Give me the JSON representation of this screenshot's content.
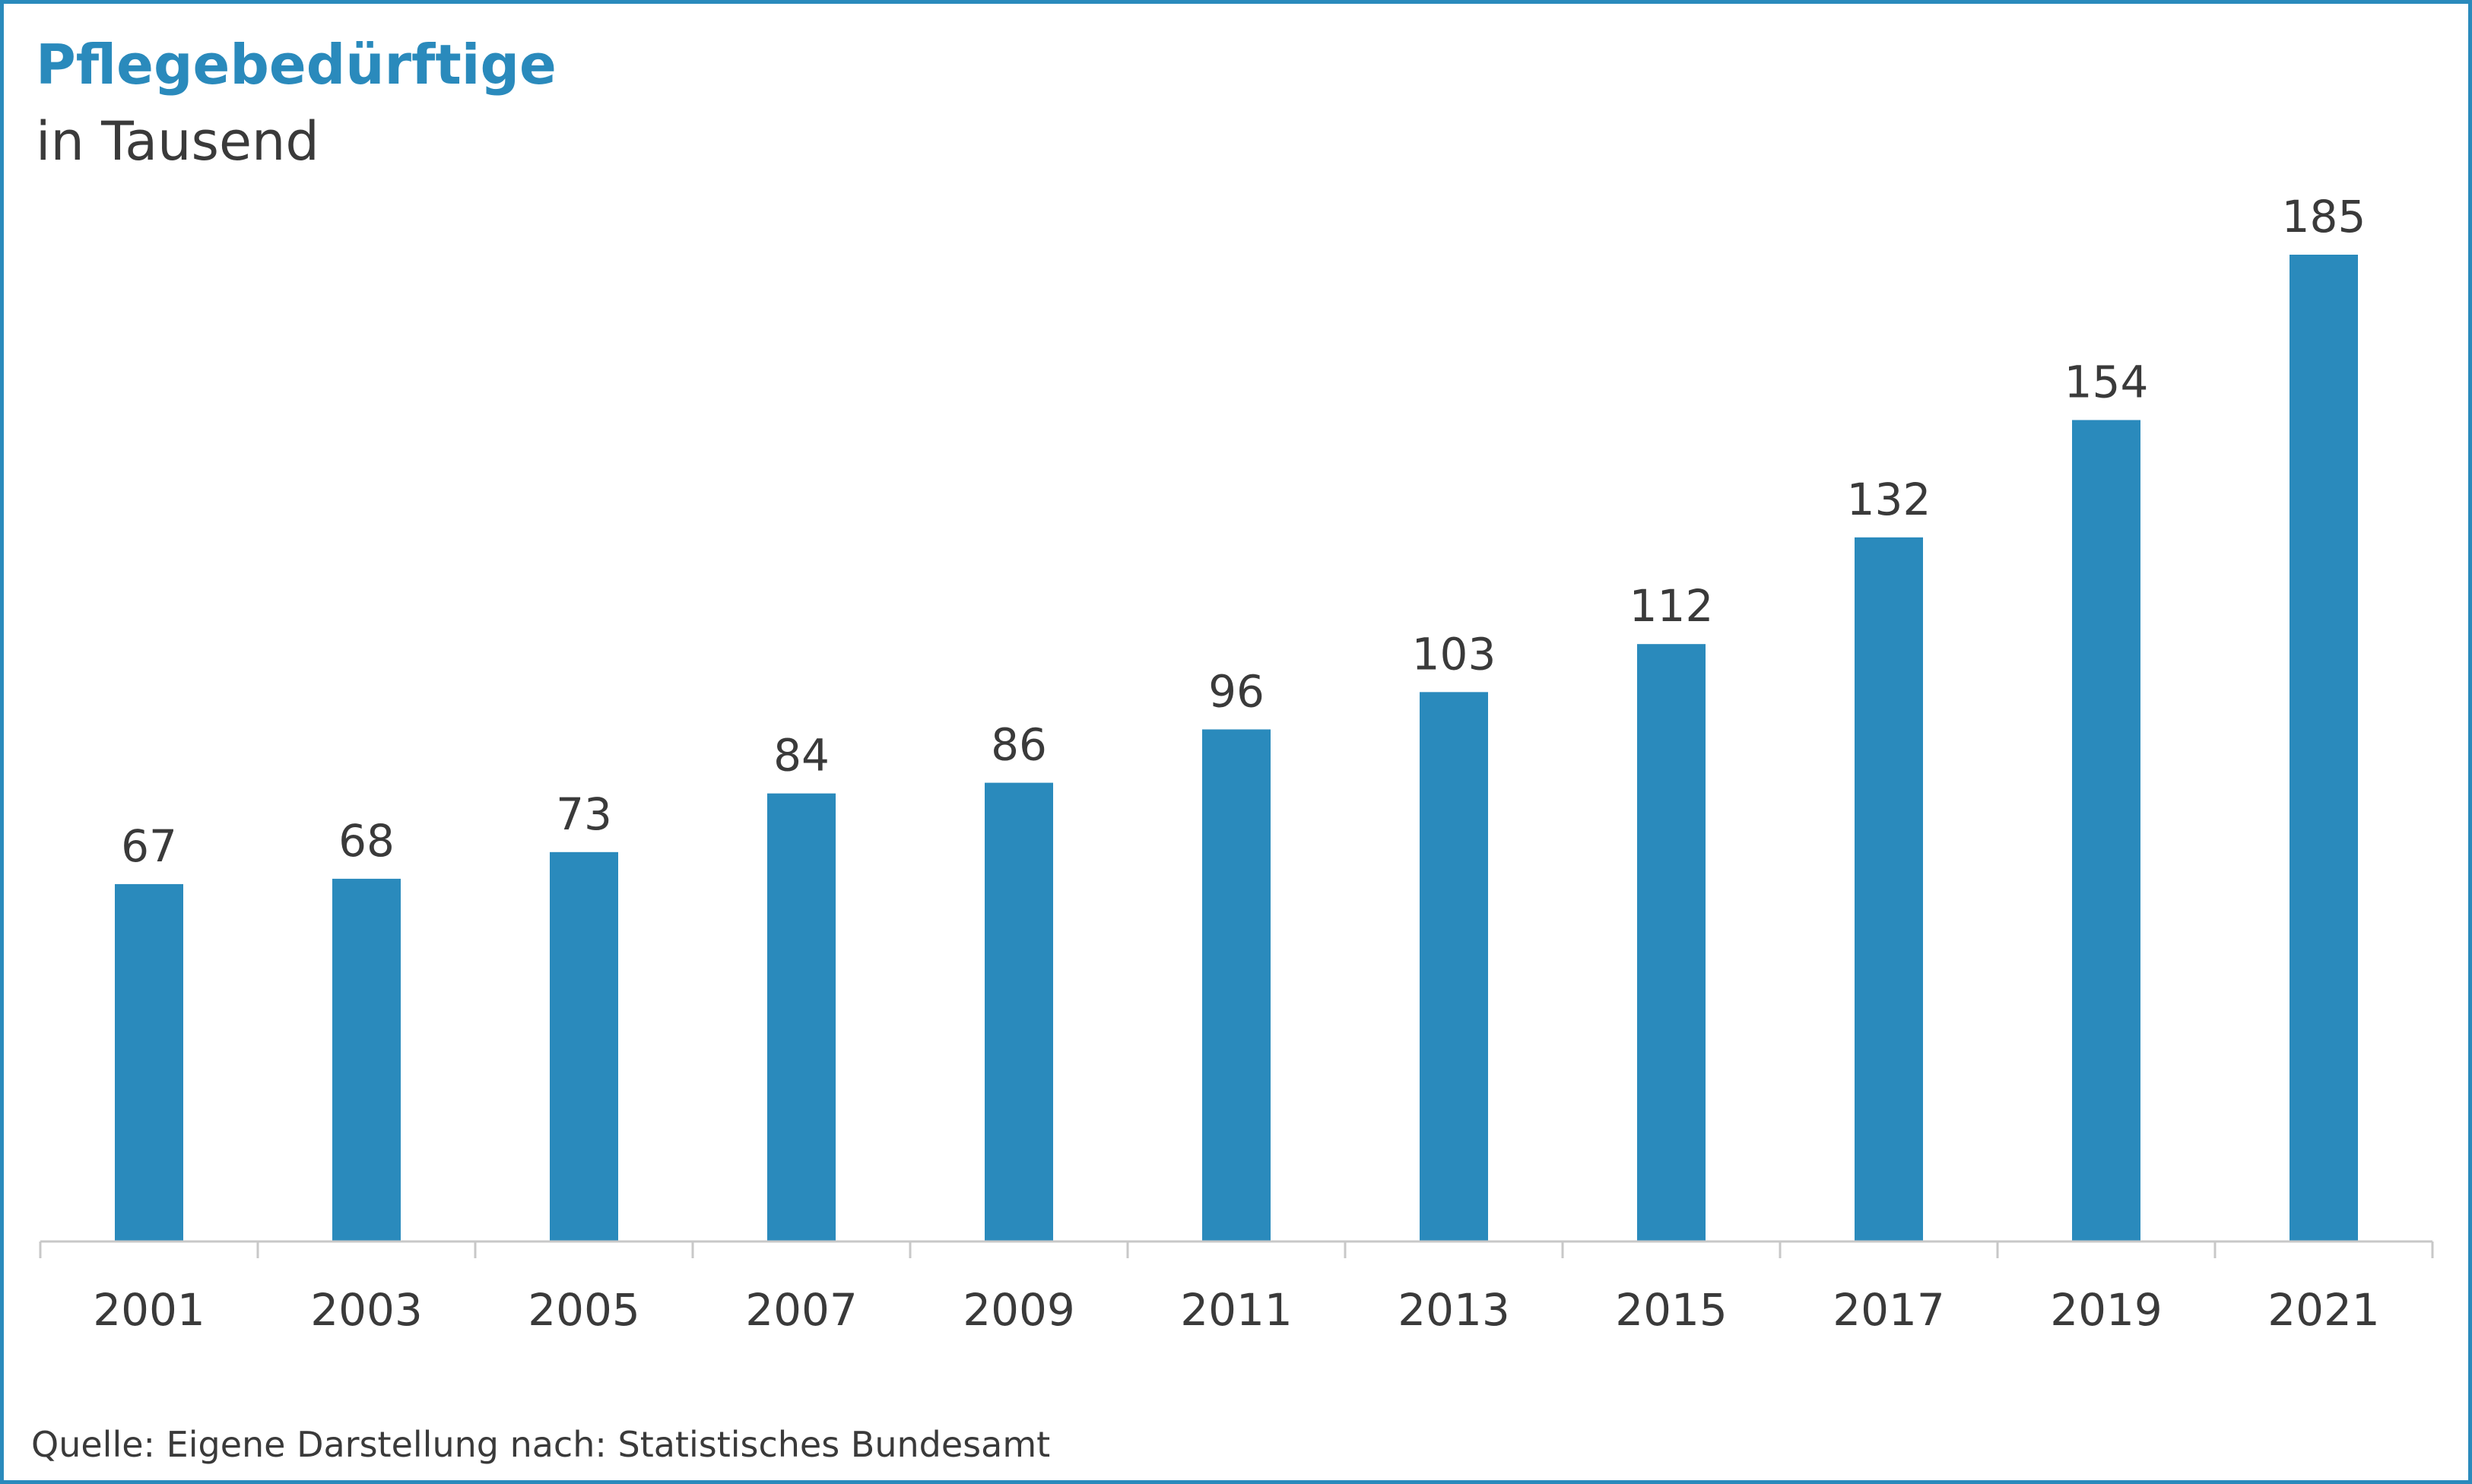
{
  "chart_data": {
    "type": "bar",
    "title": "Pflegebedürftige",
    "subtitle": "in Tausend",
    "categories": [
      "2001",
      "2003",
      "2005",
      "2007",
      "2009",
      "2011",
      "2013",
      "2015",
      "2017",
      "2019",
      "2021"
    ],
    "values": [
      67,
      68,
      73,
      84,
      86,
      96,
      103,
      112,
      132,
      154,
      185
    ],
    "data_labels": [
      "67",
      "68",
      "73",
      "84",
      "86",
      "96",
      "103",
      "112",
      "132",
      "154",
      "185"
    ],
    "ylim": [
      0,
      185
    ],
    "grid": false,
    "legend": "none",
    "bar_color": "#2a8abc",
    "source": "Quelle: Eigene Darstellung nach: Statistisches Bundesamt"
  },
  "colors": {
    "accent": "#2a8abc",
    "text": "#3a3a3a",
    "axis": "#c8c8c8"
  }
}
